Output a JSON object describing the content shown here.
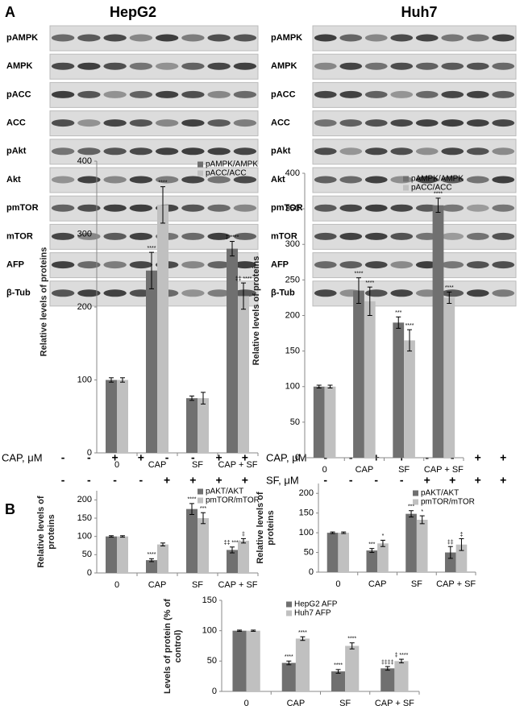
{
  "panel_labels": [
    "A",
    "B"
  ],
  "blots": [
    {
      "title": "HepG2",
      "rows": [
        "pAMPK",
        "AMPK",
        "pACC",
        "ACC",
        "pAkt",
        "Akt",
        "pmTOR",
        "mTOR",
        "AFP",
        "β-Tub"
      ],
      "treatments": [
        {
          "label": "CAP, μM",
          "signs": [
            "-",
            "-",
            "+",
            "+",
            "-",
            "-",
            "+",
            "+"
          ]
        },
        {
          "signs": [
            "-",
            "-",
            "-",
            "-",
            "+",
            "+",
            "+",
            "+"
          ]
        }
      ]
    },
    {
      "title": "Huh7",
      "rows": [
        "pAMPK",
        "AMPK",
        "pACC",
        "ACC",
        "pAkt",
        "Akt",
        "pmTOR",
        "mTOR",
        "AFP",
        "β-Tub"
      ],
      "treatments": [
        {
          "label": "CAP, μM",
          "signs": [
            "-",
            "-",
            "+",
            "+",
            "-",
            "-",
            "+",
            "+"
          ]
        },
        {
          "label": "SF, μM",
          "signs": [
            "-",
            "-",
            "-",
            "-",
            "+",
            "+",
            "+",
            "+"
          ]
        }
      ]
    }
  ],
  "chart_data": [
    {
      "type": "bar",
      "ylabel": "Relative levels of proteins",
      "categories": [
        "0",
        "CAP",
        "SF",
        "CAP + SF"
      ],
      "ylim": [
        0,
        400
      ],
      "yticks": [
        0,
        100,
        200,
        300,
        400
      ],
      "series": [
        {
          "name": "pAMPK/AMPK",
          "color": "#707070",
          "values": [
            100,
            250,
            75,
            280
          ],
          "errors": [
            3,
            25,
            3,
            10
          ],
          "annotations": [
            null,
            "****",
            null,
            "‡ ****"
          ]
        },
        {
          "name": "pACC/ACC",
          "color": "#c0c0c0",
          "values": [
            100,
            340,
            75,
            215
          ],
          "errors": [
            3,
            25,
            8,
            18
          ],
          "annotations": [
            null,
            "****",
            null,
            "‡‡ ****"
          ]
        }
      ]
    },
    {
      "type": "bar",
      "ylabel": "Relative levels of proteins",
      "categories": [
        "0",
        "CAP",
        "SF",
        "CAP + SF"
      ],
      "ylim": [
        0,
        400
      ],
      "yticks": [
        0,
        50,
        100,
        150,
        200,
        250,
        300,
        350,
        400
      ],
      "series": [
        {
          "name": "pAMPK/AMPK",
          "color": "#707070",
          "values": [
            100,
            235,
            190,
            355
          ],
          "errors": [
            2,
            18,
            8,
            10
          ],
          "annotations": [
            null,
            "****",
            "***",
            "****"
          ]
        },
        {
          "name": "pACC/ACC",
          "color": "#c0c0c0",
          "values": [
            100,
            220,
            165,
            225
          ],
          "errors": [
            2,
            20,
            15,
            8
          ],
          "annotations": [
            null,
            "****",
            "****",
            "****"
          ]
        }
      ]
    },
    {
      "type": "bar",
      "ylabel": "Relative levels of proteins",
      "categories": [
        "0",
        "CAP",
        "SF",
        "CAP + SF"
      ],
      "ylim": [
        0,
        225
      ],
      "yticks": [
        0,
        50,
        100,
        150,
        200
      ],
      "series": [
        {
          "name": "pAKT/AKT",
          "color": "#707070",
          "values": [
            100,
            35,
            175,
            63
          ],
          "errors": [
            2,
            4,
            15,
            8
          ],
          "annotations": [
            null,
            "****",
            "****",
            "‡‡ ****"
          ]
        },
        {
          "name": "pmTOR/mTOR",
          "color": "#c0c0c0",
          "values": [
            100,
            78,
            150,
            88
          ],
          "errors": [
            2,
            4,
            15,
            6
          ],
          "annotations": [
            null,
            null,
            "***",
            "‡"
          ]
        }
      ]
    },
    {
      "type": "bar",
      "ylabel": "Relative levels of proteins",
      "categories": [
        "0",
        "CAP",
        "SF",
        "CAP + SF"
      ],
      "ylim": [
        0,
        225
      ],
      "yticks": [
        0,
        50,
        100,
        150,
        200
      ],
      "series": [
        {
          "name": "pAKT/AKT",
          "color": "#707070",
          "values": [
            100,
            55,
            148,
            50
          ],
          "errors": [
            2,
            5,
            8,
            15
          ],
          "annotations": [
            null,
            "***",
            "***",
            "‡‡"
          ]
        },
        {
          "name": "pmTOR/mTOR",
          "color": "#c0c0c0",
          "values": [
            100,
            73,
            133,
            70
          ],
          "errors": [
            2,
            8,
            10,
            15
          ],
          "annotations": [
            null,
            "*",
            "*",
            "‡"
          ]
        }
      ]
    },
    {
      "type": "bar",
      "ylabel": "Levels of protein (% of control)",
      "categories": [
        "0",
        "CAP",
        "SF",
        "CAP + SF"
      ],
      "ylim": [
        0,
        150
      ],
      "yticks": [
        0,
        50,
        100,
        150
      ],
      "series": [
        {
          "name": "HepG2 AFP",
          "color": "#707070",
          "values": [
            100,
            47,
            33,
            38
          ],
          "errors": [
            1,
            3,
            3,
            3
          ],
          "annotations": [
            null,
            "****",
            "****",
            "‡‡‡‡"
          ]
        },
        {
          "name": "Huh7 AFP",
          "color": "#c0c0c0",
          "values": [
            100,
            87,
            75,
            50
          ],
          "errors": [
            1,
            3,
            5,
            3
          ],
          "annotations": [
            null,
            "****",
            "****",
            "‡ ****"
          ]
        }
      ]
    }
  ]
}
